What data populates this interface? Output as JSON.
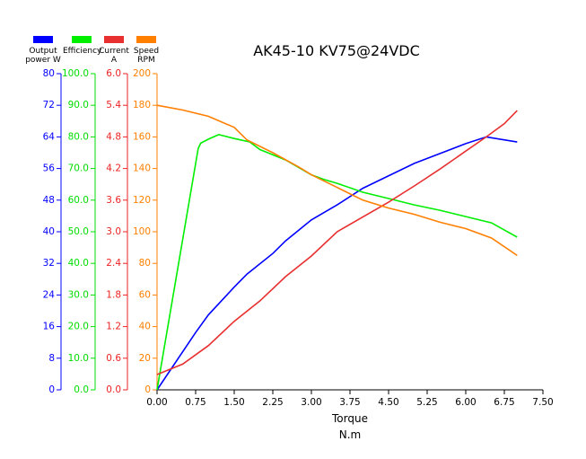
{
  "chart_data": {
    "type": "line",
    "title": "AK45-10 KV75@24VDC",
    "xlabel": "Torque",
    "xunit": "N.m",
    "xlim": [
      0,
      7.5
    ],
    "xticks": [
      {
        "value": 0,
        "label": "0.00"
      },
      {
        "value": 0.75,
        "label": "0.75"
      },
      {
        "value": 1.5,
        "label": "1.50"
      },
      {
        "value": 2.25,
        "label": "2.25"
      },
      {
        "value": 3,
        "label": "3.00"
      },
      {
        "value": 3.75,
        "label": "3.75"
      },
      {
        "value": 4.5,
        "label": "4.50"
      },
      {
        "value": 5.25,
        "label": "5.25"
      },
      {
        "value": 6,
        "label": "6.00"
      },
      {
        "value": 6.75,
        "label": "6.75"
      },
      {
        "value": 7.5,
        "label": "7.50"
      }
    ],
    "ylim": [
      0,
      80
    ],
    "yticks": [
      0,
      8,
      16,
      24,
      32,
      40,
      48,
      56,
      64,
      72,
      80
    ],
    "ycolor": "#0000ff",
    "y2lim": [
      0,
      100
    ],
    "y2ticks": [
      {
        "value": 0,
        "label": "0.0"
      },
      {
        "value": 10,
        "label": "10.0"
      },
      {
        "value": 20,
        "label": "20.0"
      },
      {
        "value": 30,
        "label": "30.0"
      },
      {
        "value": 40,
        "label": "40.0"
      },
      {
        "value": 50,
        "label": "50.0"
      },
      {
        "value": 60,
        "label": "60.0"
      },
      {
        "value": 70,
        "label": "70.0"
      },
      {
        "value": 80,
        "label": "80.0"
      },
      {
        "value": 90,
        "label": "90.0"
      },
      {
        "value": 100,
        "label": "100.0"
      }
    ],
    "y2color": "#00dd00",
    "y3lim": [
      0,
      6
    ],
    "y3ticks": [
      {
        "value": 0,
        "label": "0.0"
      },
      {
        "value": 0.6,
        "label": "0.6"
      },
      {
        "value": 1.2,
        "label": "1.2"
      },
      {
        "value": 1.8,
        "label": "1.8"
      },
      {
        "value": 2.4,
        "label": "2.4"
      },
      {
        "value": 3,
        "label": "3.0"
      },
      {
        "value": 3.6,
        "label": "3.6"
      },
      {
        "value": 4.2,
        "label": "4.2"
      },
      {
        "value": 4.8,
        "label": "4.8"
      },
      {
        "value": 5.4,
        "label": "5.4"
      },
      {
        "value": 6,
        "label": "6.0"
      }
    ],
    "y3color": "#ee2222",
    "y4lim": [
      0,
      200
    ],
    "y4ticks": [
      0,
      20,
      40,
      60,
      80,
      100,
      120,
      140,
      160,
      180,
      200
    ],
    "y4color": "#ff7f00",
    "series": [
      {
        "name": "Output power W",
        "color": "#0000ff",
        "axis": "y",
        "x": [
          0,
          0.75,
          1.0,
          1.5,
          1.75,
          2.25,
          2.5,
          3.0,
          3.5,
          4.0,
          5.0,
          6.0,
          6.4,
          7.0
        ],
        "values": [
          0,
          14.5,
          19,
          26,
          29.3,
          34.5,
          37.7,
          43,
          46.8,
          51,
          57.3,
          62.3,
          64,
          62.7
        ]
      },
      {
        "name": "Efficiency",
        "color": "#00ee00",
        "axis": "y2",
        "x": [
          0,
          0.8,
          0.85,
          1.0,
          1.2,
          1.5,
          1.8,
          2.0,
          2.5,
          3.0,
          3.25,
          3.5,
          4.0,
          4.5,
          5.0,
          5.5,
          6.0,
          6.5,
          7.0
        ],
        "values": [
          0,
          76.4,
          78,
          79.3,
          80.7,
          79.5,
          78.4,
          76,
          72.7,
          68,
          66.5,
          65.3,
          62.5,
          60.5,
          58.5,
          56.8,
          54.8,
          52.8,
          48.3
        ]
      },
      {
        "name": "Current A",
        "color": "#e83030",
        "axis": "y3",
        "x": [
          0,
          0.5,
          1.0,
          1.5,
          2.0,
          2.5,
          3.0,
          3.5,
          4.5,
          5.0,
          5.5,
          6.0,
          6.4,
          6.75,
          7.0
        ],
        "values": [
          0.29,
          0.49,
          0.84,
          1.3,
          1.69,
          2.15,
          2.54,
          3.0,
          3.56,
          3.87,
          4.19,
          4.53,
          4.8,
          5.05,
          5.3
        ]
      },
      {
        "name": "Speed RPM",
        "color": "#ff7f00",
        "axis": "y4",
        "x": [
          0,
          0.5,
          1.0,
          1.5,
          1.75,
          2.25,
          2.75,
          3.0,
          3.5,
          4.0,
          4.5,
          5.0,
          5.5,
          6.0,
          6.5,
          7.0
        ],
        "values": [
          180,
          177,
          173,
          166,
          158,
          150,
          141,
          136,
          128,
          120,
          115,
          111,
          106,
          102,
          96,
          85
        ]
      }
    ]
  }
}
